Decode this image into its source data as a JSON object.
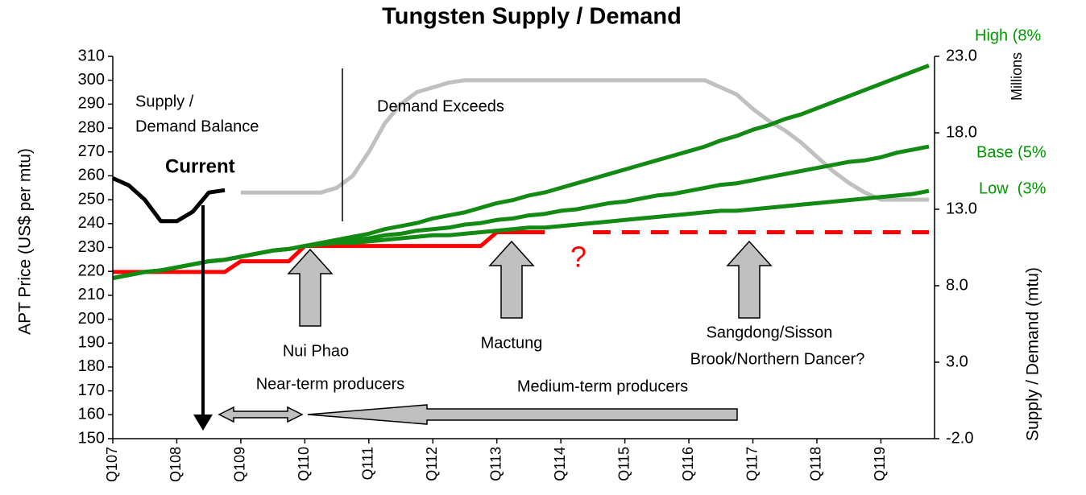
{
  "chart_data": {
    "type": "line",
    "title": "Tungsten Supply / Demand",
    "ylabel": "APT Price (US$ per mtu)",
    "y2label": "Supply / Demand (mtu)",
    "y2unit": "Millions",
    "categories": [
      "Q107",
      null,
      null,
      null,
      "Q108",
      null,
      null,
      null,
      "Q109",
      null,
      null,
      null,
      "Q110",
      null,
      null,
      null,
      "Q111",
      null,
      null,
      null,
      "Q112",
      null,
      null,
      null,
      "Q113",
      null,
      null,
      null,
      "Q114",
      null,
      null,
      null,
      "Q115",
      null,
      null,
      null,
      "Q116",
      null,
      null,
      null,
      "Q117",
      null,
      null,
      null,
      "Q118",
      null,
      null,
      null,
      "Q119",
      null,
      null,
      null
    ],
    "ylim": [
      150,
      310
    ],
    "yticks": [
      150,
      160,
      170,
      180,
      190,
      200,
      210,
      220,
      230,
      240,
      250,
      260,
      270,
      280,
      290,
      300,
      310
    ],
    "y2lim": [
      -2,
      23
    ],
    "y2ticks": [
      {
        "value": -2,
        "label": "-2.0"
      },
      {
        "value": 3,
        "label": "3.0"
      },
      {
        "value": 8,
        "label": "8.0"
      },
      {
        "value": 13,
        "label": "13.0"
      },
      {
        "value": 18,
        "label": "18.0"
      },
      {
        "value": 23,
        "label": "23.0"
      }
    ],
    "series": [
      {
        "color": "#c0c0c0",
        "axis": "y",
        "dashed": false,
        "values": [
          null,
          null,
          null,
          null,
          null,
          null,
          null,
          null,
          253,
          253,
          253,
          253,
          253,
          253,
          255,
          260,
          270,
          282,
          290,
          295,
          297,
          299,
          300,
          300,
          300,
          300,
          300,
          300,
          300,
          300,
          300,
          300,
          300,
          300,
          300,
          300,
          300,
          300,
          297,
          294,
          288,
          283,
          279,
          274,
          268,
          262,
          257,
          253,
          250,
          250,
          250,
          250
        ]
      },
      {
        "color": "#ff0000",
        "axis": "y2",
        "dashed": false,
        "values": [
          8.9,
          8.9,
          8.9,
          8.9,
          8.9,
          8.9,
          8.9,
          8.9,
          9.6,
          9.6,
          9.6,
          9.6,
          10.6,
          10.6,
          10.6,
          10.6,
          10.6,
          10.6,
          10.6,
          10.6,
          10.6,
          10.6,
          10.6,
          10.6,
          11.5,
          11.5,
          11.5,
          11.5,
          null,
          null,
          null,
          null,
          null,
          null,
          null,
          null,
          null,
          null,
          null,
          null,
          null,
          null,
          null,
          null,
          null,
          null,
          null,
          null,
          null,
          null,
          null,
          null
        ]
      },
      {
        "color": "#ff0000",
        "axis": "y2",
        "dashed": true,
        "values": [
          null,
          null,
          null,
          null,
          null,
          null,
          null,
          null,
          null,
          null,
          null,
          null,
          null,
          null,
          null,
          null,
          null,
          null,
          null,
          null,
          null,
          null,
          null,
          null,
          null,
          null,
          null,
          null,
          null,
          null,
          11.5,
          11.5,
          11.5,
          11.5,
          11.5,
          11.5,
          11.5,
          11.5,
          11.5,
          11.5,
          11.5,
          11.5,
          11.5,
          11.5,
          11.5,
          11.5,
          11.5,
          11.5,
          11.5,
          11.5,
          11.5,
          11.5
        ]
      },
      {
        "color": "#138a13",
        "axis": "y2",
        "dashed": false,
        "values": [
          8.5,
          8.7,
          8.9,
          9.0,
          9.2,
          9.4,
          9.6,
          9.7,
          9.9,
          10.1,
          10.3,
          10.4,
          10.6,
          10.8,
          11.0,
          11.2,
          11.4,
          11.7,
          11.9,
          12.1,
          12.4,
          12.6,
          12.8,
          13.1,
          13.4,
          13.6,
          13.9,
          14.1,
          14.4,
          14.7,
          15.0,
          15.3,
          15.6,
          15.9,
          16.2,
          16.5,
          16.8,
          17.1,
          17.5,
          17.8,
          18.2,
          18.5,
          18.9,
          19.2,
          19.6,
          20.0,
          20.4,
          20.8,
          21.2,
          21.6,
          22.0,
          22.4
        ]
      },
      {
        "color": "#138a13",
        "axis": "y2",
        "dashed": false,
        "values": [
          8.5,
          8.7,
          8.9,
          9.0,
          9.2,
          9.4,
          9.6,
          9.7,
          9.9,
          10.1,
          10.3,
          10.4,
          10.6,
          10.7,
          10.9,
          11.0,
          11.1,
          11.3,
          11.4,
          11.6,
          11.7,
          11.8,
          12.0,
          12.1,
          12.3,
          12.4,
          12.6,
          12.7,
          12.9,
          13.0,
          13.2,
          13.4,
          13.5,
          13.7,
          13.9,
          14.0,
          14.2,
          14.4,
          14.6,
          14.7,
          14.9,
          15.1,
          15.3,
          15.5,
          15.7,
          15.9,
          16.1,
          16.2,
          16.4,
          16.7,
          16.9,
          17.1
        ]
      },
      {
        "color": "#138a13",
        "axis": "y2",
        "dashed": false,
        "values": [
          8.5,
          8.7,
          8.9,
          9.0,
          9.2,
          9.4,
          9.6,
          9.7,
          9.9,
          10.1,
          10.3,
          10.4,
          10.6,
          10.7,
          10.8,
          10.8,
          10.9,
          11.0,
          11.1,
          11.2,
          11.3,
          11.3,
          11.4,
          11.5,
          11.6,
          11.7,
          11.8,
          11.8,
          11.9,
          12.0,
          12.1,
          12.2,
          12.3,
          12.4,
          12.5,
          12.6,
          12.7,
          12.8,
          12.9,
          12.9,
          13.0,
          13.1,
          13.2,
          13.3,
          13.4,
          13.5,
          13.6,
          13.7,
          13.8,
          13.9,
          14.0,
          14.2
        ]
      },
      {
        "color": "#000000",
        "axis": "y",
        "dashed": false,
        "values": [
          259,
          256,
          250,
          241,
          241,
          245,
          253,
          254,
          null,
          null,
          null,
          null,
          null,
          null,
          null,
          null,
          null,
          null,
          null,
          null,
          null,
          null,
          null,
          null,
          null,
          null,
          null,
          null,
          null,
          null,
          null,
          null,
          null,
          null,
          null,
          null,
          null,
          null,
          null,
          null,
          null,
          null,
          null,
          null,
          null,
          null,
          null,
          null,
          null,
          null,
          null,
          null
        ]
      }
    ],
    "annotations": [
      "Supply /",
      "Demand Balance",
      "Current",
      "Demand Exceeds",
      "?",
      "Nui Phao",
      "Mactung",
      "Sangdong/Sisson",
      "Brook/Northern Dancer?",
      "Near-term producers",
      "Medium-term producers",
      "High (8%",
      "Base (5%",
      "Low  (3%"
    ]
  }
}
